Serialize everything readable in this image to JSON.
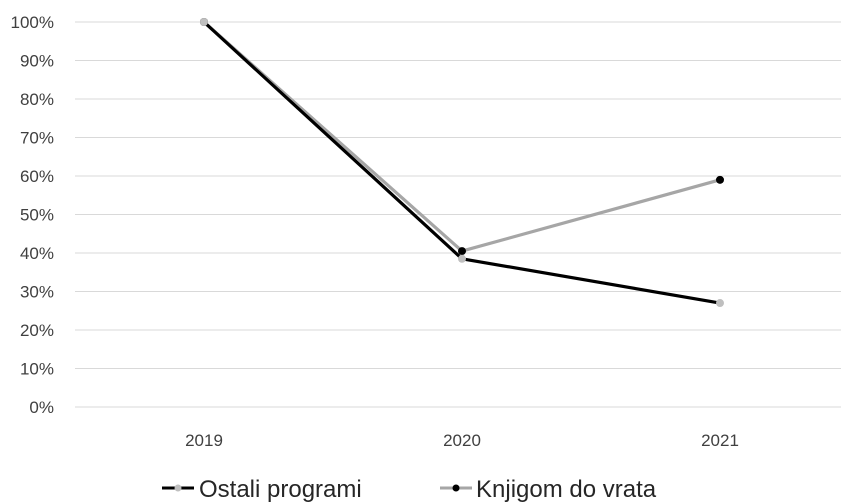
{
  "chart_data": {
    "type": "line",
    "categories": [
      "2019",
      "2020",
      "2021"
    ],
    "yticks": [
      "0%",
      "10%",
      "20%",
      "30%",
      "40%",
      "50%",
      "60%",
      "70%",
      "80%",
      "90%",
      "100%"
    ],
    "ylim": [
      0,
      100
    ],
    "grid": true,
    "legend_position": "bottom",
    "series": [
      {
        "name": "Ostali programi",
        "values": [
          100,
          38.5,
          27
        ],
        "line_color": "#000000",
        "marker_color": "#bfbfbf"
      },
      {
        "name": "Knjigom do vrata",
        "values": [
          100,
          40.5,
          59
        ],
        "line_color": "#a6a6a6",
        "marker_color": "#000000"
      }
    ],
    "colors": {
      "gridline": "#d9d9d9",
      "tick_text": "#404040"
    }
  }
}
